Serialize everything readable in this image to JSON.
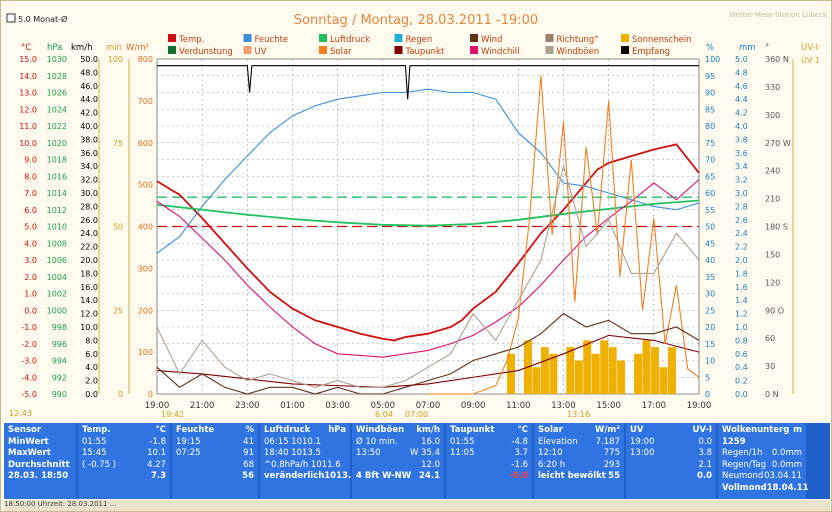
{
  "header": {
    "checkbox_label": "5.0 Monat-Ø",
    "title": "Sonntag / Montag, 28.03.2011  -19:00",
    "station": "Wetter-Mess-Station Lübeck"
  },
  "legend": [
    {
      "name": "Temp.",
      "color": "#d01010"
    },
    {
      "name": "Feuchte",
      "color": "#3f8fd8"
    },
    {
      "name": "Luftdruck",
      "color": "#20c060"
    },
    {
      "name": "Regen",
      "color": "#20b0d0"
    },
    {
      "name": "Wind",
      "color": "#603018"
    },
    {
      "name": "Richtung°",
      "color": "#a08070"
    },
    {
      "name": "Sonnenschein",
      "color": "#f0b000"
    },
    {
      "name": "Verdunstung",
      "color": "#107030"
    },
    {
      "name": "UV",
      "color": "#f0a070"
    },
    {
      "name": "Solar",
      "color": "#f08020"
    },
    {
      "name": "Taupunkt",
      "color": "#800000"
    },
    {
      "name": "Windchill",
      "color": "#e01070"
    },
    {
      "name": "Windböen",
      "color": "#b0a090"
    },
    {
      "name": "Empfang",
      "color": "#000000"
    }
  ],
  "axis_units": {
    "temp": "°C",
    "hpa": "hPa",
    "kmh": "km/h",
    "min": "min",
    "wm2": "W/m²",
    "pct": "%",
    "mm": "mm",
    "deg": "°",
    "uv": "UV-I"
  },
  "time_markers": {
    "left": "12:43",
    "sunrise": "6:04",
    "sunset": "19:42",
    "noon": "07:00",
    "mid": "13:16"
  },
  "chart_data": {
    "type": "line",
    "x_ticks": [
      "19:00",
      "21:00",
      "23:00",
      "01:00",
      "03:00",
      "05:00",
      "07:00",
      "09:00",
      "11:00",
      "13:00",
      "15:00",
      "17:00",
      "19:00"
    ],
    "xlim_hours": [
      0,
      24
    ],
    "axes": {
      "temp_c": {
        "ticks": [
          15,
          14,
          13,
          12,
          11,
          10,
          9,
          8,
          7,
          6,
          5,
          4,
          3,
          2,
          1,
          0,
          -1,
          -2,
          -3,
          -4,
          -5
        ],
        "ylim": [
          -5,
          15
        ],
        "color": "#d01010"
      },
      "hpa": {
        "ticks": [
          1030,
          1028,
          1026,
          1024,
          1022,
          1020,
          1018,
          1016,
          1014,
          1012,
          1010,
          1008,
          1006,
          1004,
          1002,
          1000,
          998,
          996,
          994,
          992,
          990
        ],
        "ylim": [
          990,
          1030
        ],
        "color": "#1aa050"
      },
      "kmh": {
        "ticks": [
          50,
          48,
          46,
          44,
          42,
          40,
          38,
          36,
          34,
          32,
          30,
          28,
          26,
          24,
          22,
          20,
          18,
          16,
          14,
          12,
          10,
          8,
          6,
          4,
          2,
          0
        ],
        "ylim": [
          0,
          50
        ],
        "color": "#000000"
      },
      "min": {
        "ticks": [
          100,
          75,
          50,
          25,
          0
        ],
        "ylim": [
          0,
          100
        ],
        "color": "#c8a020"
      },
      "wm2": {
        "ticks": [
          800,
          700,
          600,
          500,
          400,
          300,
          200,
          100,
          0
        ],
        "ylim": [
          0,
          800
        ],
        "color": "#e07020"
      },
      "pct": {
        "ticks": [
          100,
          95,
          90,
          85,
          80,
          75,
          70,
          65,
          60,
          55,
          50,
          45,
          40,
          35,
          30,
          25,
          20,
          15,
          10,
          5,
          0
        ],
        "ylim": [
          0,
          100
        ],
        "color": "#1a80c0"
      },
      "mm": {
        "ticks": [
          5.0,
          4.8,
          4.6,
          4.4,
          4.2,
          4.0,
          3.8,
          3.6,
          3.4,
          3.2,
          3.0,
          2.8,
          2.6,
          2.4,
          2.2,
          2.0,
          1.8,
          1.6,
          1.4,
          1.2,
          1.0,
          0.8,
          0.6,
          0.4,
          0.2,
          0
        ],
        "ylim": [
          0,
          5
        ],
        "color": "#1a80c0"
      },
      "deg": {
        "ticks": [
          "360 N",
          "330",
          "300",
          "270 W",
          "240",
          "210",
          "180 S",
          "150",
          "120",
          "90 O",
          "60",
          "30",
          "0 N"
        ],
        "ylim": [
          0,
          360
        ],
        "color": "#555555"
      },
      "uv": {
        "ticks": [
          "UV 1"
        ],
        "color": "#d8a020"
      }
    },
    "series": [
      {
        "name": "Temp.",
        "axis": "temp_c",
        "color": "#d01010",
        "x": [
          0,
          1,
          2,
          3,
          4,
          5,
          6,
          7,
          8,
          9,
          10,
          10.5,
          11,
          12,
          13,
          13.5,
          14,
          15,
          16,
          17,
          18,
          19,
          19.5,
          20,
          21,
          22,
          23,
          24
        ],
        "y": [
          7.7,
          6.9,
          5.5,
          4.0,
          2.5,
          1.1,
          0.1,
          -0.6,
          -1.0,
          -1.4,
          -1.7,
          -1.8,
          -1.6,
          -1.4,
          -1.0,
          -0.6,
          0.1,
          1.1,
          2.8,
          4.6,
          6.0,
          7.6,
          8.4,
          8.8,
          9.2,
          9.6,
          9.9,
          8.2
        ]
      },
      {
        "name": "Feuchte",
        "axis": "pct",
        "color": "#3f8fd8",
        "x": [
          0,
          1,
          2,
          3,
          4,
          5,
          6,
          7,
          8,
          9,
          10,
          11,
          12,
          13,
          14,
          15,
          15.5,
          16,
          17,
          18,
          19,
          20,
          21,
          22,
          23,
          24
        ],
        "y": [
          42,
          47,
          56,
          64,
          71,
          78,
          83,
          86,
          88,
          89,
          90,
          90,
          91,
          90,
          90,
          88,
          83,
          78,
          72,
          63,
          62,
          60,
          58,
          56,
          55,
          57
        ]
      },
      {
        "name": "Luftdruck",
        "axis": "hpa",
        "color": "#20c060",
        "x": [
          0,
          2,
          4,
          6,
          8,
          10,
          12,
          14,
          16,
          18,
          20,
          22,
          24
        ],
        "y": [
          1012.6,
          1012.0,
          1011.4,
          1010.9,
          1010.5,
          1010.2,
          1010.1,
          1010.3,
          1010.8,
          1011.5,
          1012.1,
          1012.7,
          1013.1
        ]
      },
      {
        "name": "Taupunkt",
        "axis": "temp_c",
        "color": "#800000",
        "x": [
          0,
          2,
          4,
          6,
          8,
          10,
          12,
          14,
          16,
          18,
          20,
          22,
          24
        ],
        "y": [
          -3.6,
          -3.8,
          -4.1,
          -4.4,
          -4.5,
          -4.6,
          -4.4,
          -4.0,
          -3.6,
          -2.6,
          -1.5,
          -1.8,
          -2.5
        ]
      },
      {
        "name": "Windchill",
        "axis": "temp_c",
        "color": "#e01070",
        "x": [
          0,
          1,
          2,
          3,
          4,
          5,
          6,
          7,
          8,
          9,
          10,
          11,
          12,
          13,
          14,
          15,
          16,
          17,
          18,
          19,
          20,
          21,
          22,
          23,
          24
        ],
        "y": [
          6.5,
          5.6,
          4.3,
          3.0,
          1.5,
          0.2,
          -1.0,
          -2.0,
          -2.6,
          -2.7,
          -2.8,
          -2.6,
          -2.4,
          -2.0,
          -1.5,
          -0.7,
          0.2,
          1.5,
          3.0,
          4.4,
          5.5,
          6.5,
          7.6,
          6.6,
          7.8
        ]
      },
      {
        "name": "Solar",
        "axis": "wm2",
        "color": "#f08020",
        "x": [
          12,
          13,
          14,
          15,
          15.5,
          16,
          16.5,
          17,
          17.5,
          18,
          18.5,
          19,
          19.5,
          20,
          20.5,
          21,
          21.5,
          22,
          22.5,
          23,
          23.5,
          24
        ],
        "y": [
          0,
          0,
          0,
          20,
          80,
          180,
          420,
          760,
          380,
          650,
          220,
          590,
          380,
          700,
          280,
          560,
          200,
          420,
          120,
          260,
          60,
          40
        ]
      },
      {
        "name": "Windböen",
        "axis": "kmh",
        "color": "#b0a090",
        "x": [
          0,
          1,
          2,
          3,
          4,
          5,
          6,
          7,
          8,
          9,
          10,
          11,
          12,
          13,
          14,
          15,
          16,
          17,
          18,
          19,
          20,
          21,
          22,
          23,
          24
        ],
        "y": [
          10,
          3,
          8,
          4,
          2,
          3,
          2,
          1,
          2,
          1,
          1,
          2,
          4,
          6,
          12,
          8,
          14,
          20,
          34,
          22,
          26,
          18,
          18,
          24,
          20
        ]
      },
      {
        "name": "Wind",
        "axis": "kmh",
        "color": "#603018",
        "x": [
          0,
          1,
          2,
          3,
          4,
          5,
          6,
          7,
          8,
          9,
          10,
          11,
          12,
          13,
          14,
          15,
          16,
          17,
          18,
          19,
          20,
          21,
          22,
          23,
          24
        ],
        "y": [
          4,
          1,
          3,
          1,
          0,
          1,
          1,
          0,
          1,
          0,
          0,
          1,
          2,
          3,
          5,
          6,
          7,
          9,
          12,
          10,
          11,
          9,
          9,
          10,
          8
        ]
      },
      {
        "name": "Empfang",
        "axis": "pct",
        "color": "#000000",
        "x": [
          0,
          4,
          4.1,
          4.2,
          11,
          11.1,
          11.2,
          24
        ],
        "y": [
          98,
          98,
          90,
          98,
          98,
          88,
          98,
          98
        ]
      }
    ],
    "reference_lines": [
      {
        "name": "Temp. Monat-Ø",
        "axis": "temp_c",
        "value": 5.0,
        "color": "#d01010"
      },
      {
        "name": "Luftdruck Monat-Ø",
        "axis": "hpa",
        "value": 1013.5,
        "color": "#20c060"
      }
    ],
    "sunshine_bars": {
      "axis": "min",
      "color": "#f0b000",
      "from_hours": 15.5,
      "to_hours": 23,
      "values": [
        6,
        0,
        8,
        4,
        7,
        6,
        0,
        7,
        5,
        8,
        6,
        8,
        7,
        5,
        0,
        6,
        8,
        7,
        4,
        7
      ]
    }
  },
  "table": [
    {
      "header": [
        "Sensor",
        ""
      ],
      "rows": [
        [
          "MinWert",
          ""
        ],
        [
          "MaxWert",
          ""
        ],
        [
          "Durchschnitt",
          ""
        ],
        [
          "28.03. 18:50",
          ""
        ]
      ],
      "bold_last": true
    },
    {
      "header": [
        "Temp.",
        "°C"
      ],
      "rows": [
        [
          "01:55",
          "-1.8"
        ],
        [
          "15:45",
          "10.1"
        ],
        [
          "( -0.75 )",
          "4.27"
        ],
        [
          "",
          "7.3"
        ]
      ]
    },
    {
      "header": [
        "Feuchte",
        "%"
      ],
      "rows": [
        [
          "19:15",
          "41"
        ],
        [
          "07:25",
          "91"
        ],
        [
          "",
          "68"
        ],
        [
          "",
          "56"
        ]
      ]
    },
    {
      "header": [
        "Luftdruck",
        "hPa"
      ],
      "rows": [
        [
          "06:15   1010.1",
          ""
        ],
        [
          "18:40   1013.5",
          ""
        ],
        [
          "^0.8hPa/h   1011.6",
          ""
        ],
        [
          "veränderlich",
          "1013.5"
        ]
      ]
    },
    {
      "header": [
        "Windböen",
        "km/h"
      ],
      "rows": [
        [
          "Ø 10 min.",
          "16.0"
        ],
        [
          "13:50",
          "W 35.4"
        ],
        [
          "",
          "12.0"
        ],
        [
          "4 Bft W-NW",
          "24.1"
        ]
      ]
    },
    {
      "header": [
        "Taupunkt",
        "°C"
      ],
      "rows": [
        [
          "01:55",
          "-4.8"
        ],
        [
          "11:05",
          "3.7"
        ],
        [
          "",
          "-1.6"
        ],
        [
          "",
          "-0.0"
        ]
      ]
    },
    {
      "header": [
        "Solar",
        "W/m²"
      ],
      "rows": [
        [
          "Elevation",
          "7.187"
        ],
        [
          "12:10",
          "775"
        ],
        [
          "6:20 h",
          "293"
        ],
        [
          "leicht bewölkt",
          "55"
        ]
      ]
    },
    {
      "header": [
        "UV",
        "UV-I"
      ],
      "rows": [
        [
          "19:00",
          "0.0"
        ],
        [
          "13:00",
          "3.8"
        ],
        [
          "",
          "2.1"
        ],
        [
          "",
          "0.0"
        ]
      ]
    },
    {
      "header": [
        "Wolkenunterg 1259",
        "m"
      ],
      "rows": [
        [
          "Regen/1h",
          "0.0mm"
        ],
        [
          "Regen/Tag",
          "0.0mm"
        ],
        [
          "Neumond",
          "03.04.11"
        ],
        [
          "Vollmond",
          "18.04.11"
        ]
      ]
    }
  ],
  "status_text": "18:50:00 Uhrzeit: 28.03.2011 ..."
}
